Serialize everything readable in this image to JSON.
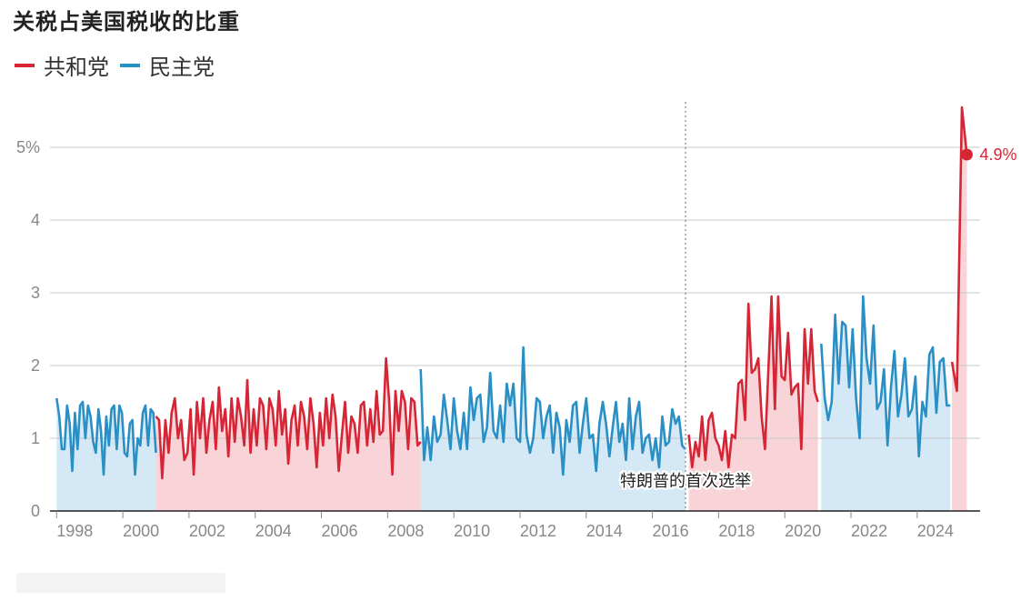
{
  "title": "关税占美国税收的比重",
  "colors": {
    "republican": "#d62636",
    "democrat": "#2a8fc4",
    "republican_fill": "#f8d3d8",
    "democrat_fill": "#d4e9f5",
    "grid": "#c8c8c8",
    "axis": "#222222"
  },
  "legend": [
    {
      "label": "共和党",
      "color": "#d62636"
    },
    {
      "label": "民主党",
      "color": "#2a8fc4"
    }
  ],
  "chart_data": {
    "type": "line",
    "title": "关税占美国税收的比重",
    "xlim": [
      1997.8,
      2025.9
    ],
    "ylim": [
      0,
      5.7
    ],
    "yticks": [
      0,
      1,
      2,
      3,
      4,
      5
    ],
    "ytick_labels": [
      "0",
      "1",
      "2",
      "3",
      "4",
      "5%"
    ],
    "xticks": [
      1998,
      2000,
      2002,
      2004,
      2006,
      2008,
      2010,
      2012,
      2014,
      2016,
      2018,
      2020,
      2022,
      2024
    ],
    "grid": true,
    "legend_position": "top-left",
    "annotation": {
      "label": "特朗普的首次选举",
      "x": 2017.0
    },
    "end_label": {
      "text": "4.9%",
      "x": 2025.5,
      "y": 4.9
    },
    "periods": [
      {
        "party": "民主党",
        "start": 1998.0,
        "end": 2001.0,
        "values": [
          1.55,
          1.3,
          0.85,
          0.85,
          1.45,
          1.2,
          0.55,
          1.35,
          0.85,
          1.45,
          1.5,
          1.0,
          1.45,
          1.3,
          0.95,
          0.8,
          1.4,
          1.1,
          0.5,
          1.3,
          0.9,
          1.4,
          1.45,
          0.85,
          1.45,
          1.35,
          0.8,
          0.75,
          1.2,
          1.25,
          0.5,
          1.0,
          0.9,
          1.35,
          1.45,
          0.9,
          1.4,
          1.35,
          0.8
        ]
      },
      {
        "party": "共和党",
        "start": 2001.0,
        "end": 2009.0,
        "values": [
          1.3,
          1.25,
          0.45,
          1.25,
          0.8,
          1.35,
          1.55,
          1.0,
          1.25,
          0.7,
          0.8,
          1.4,
          0.5,
          1.5,
          1.0,
          1.55,
          0.8,
          1.25,
          1.5,
          0.85,
          1.7,
          1.1,
          1.4,
          0.75,
          1.55,
          0.95,
          1.55,
          1.3,
          0.9,
          1.8,
          0.8,
          1.4,
          0.9,
          1.55,
          1.45,
          0.85,
          1.55,
          1.4,
          0.9,
          1.65,
          1.05,
          1.4,
          0.65,
          1.25,
          1.45,
          0.9,
          1.5,
          1.3,
          0.85,
          1.55,
          1.2,
          0.6,
          1.35,
          0.9,
          1.55,
          1.0,
          1.6,
          1.3,
          0.55,
          1.05,
          1.5,
          0.8,
          1.3,
          1.2,
          0.8,
          1.45,
          1.5,
          0.9,
          1.4,
          0.95,
          1.65,
          1.05,
          1.1,
          2.1,
          1.5,
          0.5,
          1.65,
          1.1,
          1.65,
          1.5,
          0.85,
          1.55,
          1.5,
          0.9,
          0.95
        ]
      },
      {
        "party": "民主党",
        "start": 2009.0,
        "end": 2017.0,
        "values": [
          1.95,
          0.7,
          1.15,
          0.7,
          1.3,
          0.95,
          1.05,
          1.6,
          1.25,
          0.85,
          1.55,
          1.1,
          0.85,
          1.35,
          0.85,
          1.7,
          1.25,
          1.55,
          1.6,
          0.95,
          1.15,
          1.9,
          1.1,
          1.0,
          1.45,
          0.95,
          1.75,
          1.45,
          1.75,
          1.0,
          0.95,
          2.25,
          1.05,
          0.8,
          1.0,
          1.55,
          1.5,
          1.0,
          1.3,
          1.45,
          0.8,
          1.35,
          1.15,
          0.5,
          1.25,
          0.95,
          1.45,
          1.5,
          0.8,
          1.2,
          1.55,
          1.0,
          1.05,
          0.55,
          1.2,
          1.5,
          1.2,
          0.75,
          1.15,
          1.5,
          0.95,
          1.2,
          0.7,
          1.55,
          0.85,
          1.3,
          1.5,
          0.8,
          1.0,
          1.05,
          0.7,
          1.0,
          0.6,
          1.3,
          0.9,
          0.95,
          1.4,
          1.2,
          1.3,
          0.9,
          0.85
        ]
      },
      {
        "party": "共和党",
        "start": 2017.1,
        "end": 2021.0,
        "values": [
          1.05,
          0.6,
          0.95,
          0.75,
          1.3,
          0.7,
          1.25,
          1.35,
          1.0,
          0.9,
          0.7,
          1.1,
          0.6,
          1.05,
          1.0,
          1.75,
          1.8,
          1.25,
          2.85,
          1.9,
          1.95,
          2.1,
          1.3,
          0.85,
          1.9,
          2.95,
          1.4,
          2.95,
          1.85,
          1.8,
          2.45,
          1.6,
          1.7,
          1.75,
          0.85,
          2.5,
          1.75,
          2.5,
          1.65,
          1.5
        ]
      },
      {
        "party": "民主党",
        "start": 2021.1,
        "end": 2025.0,
        "values": [
          2.3,
          1.55,
          1.25,
          1.5,
          2.7,
          1.75,
          2.6,
          2.55,
          1.7,
          2.5,
          1.55,
          1.0,
          2.95,
          2.1,
          1.75,
          2.55,
          1.4,
          1.5,
          1.95,
          0.9,
          1.7,
          2.2,
          1.3,
          1.6,
          2.1,
          1.3,
          1.4,
          1.85,
          0.75,
          1.5,
          1.3,
          2.15,
          2.25,
          1.35,
          2.05,
          2.1,
          1.45,
          1.45
        ]
      },
      {
        "party": "共和党",
        "start": 2025.05,
        "end": 2025.5,
        "values": [
          2.05,
          1.65,
          5.55,
          4.9
        ]
      }
    ]
  }
}
